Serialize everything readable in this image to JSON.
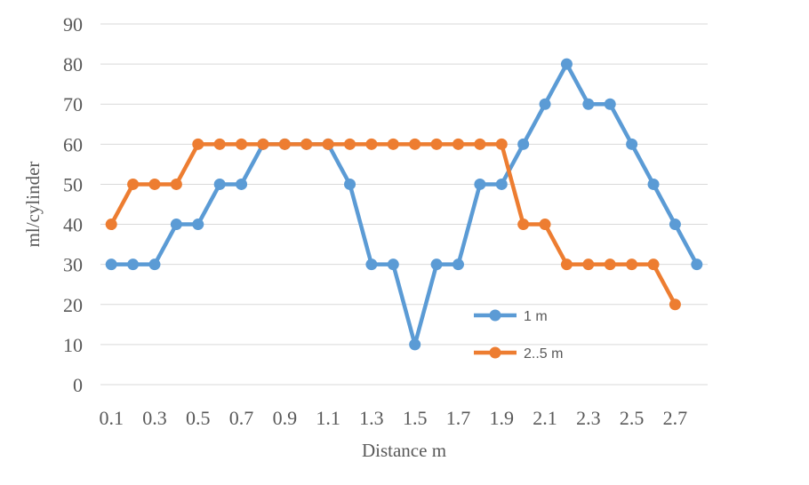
{
  "chart_data": {
    "type": "line",
    "title": "",
    "xlabel": "Distance m",
    "ylabel": "ml/cylinder",
    "ylim": [
      0,
      90
    ],
    "yticks": [
      0,
      10,
      20,
      30,
      40,
      50,
      60,
      70,
      80,
      90
    ],
    "x": [
      "0.1",
      "0.2",
      "0.3",
      "0.4",
      "0.5",
      "0.6",
      "0.7",
      "0.8",
      "0.9",
      "1",
      "1.1",
      "1.2",
      "1.3",
      "1.4",
      "1.5",
      "1.6",
      "1.7",
      "1.8",
      "1.9",
      "2",
      "2.1",
      "2.2",
      "2.3",
      "2.4",
      "2.5",
      "2.6",
      "2.7",
      "2.8"
    ],
    "xtick_labels": [
      "0.1",
      "",
      "0.3",
      "",
      "0.5",
      "",
      "0.7",
      "",
      "0.9",
      "",
      "1.1",
      "",
      "1.3",
      "",
      "1.5",
      "",
      "1.7",
      "",
      "1.9",
      "",
      "2.1",
      "",
      "2.3",
      "",
      "2.5",
      "",
      "2.7",
      ""
    ],
    "grid": true,
    "legend_position": "bottom-right",
    "series": [
      {
        "name": "1 m",
        "color": "#5b9bd5",
        "values": [
          30,
          30,
          30,
          40,
          40,
          50,
          50,
          60,
          60,
          60,
          60,
          50,
          30,
          30,
          10,
          30,
          30,
          50,
          50,
          60,
          70,
          80,
          70,
          70,
          60,
          50,
          40,
          30
        ]
      },
      {
        "name": "2..5 m",
        "color": "#ed7d31",
        "values": [
          40,
          50,
          50,
          50,
          60,
          60,
          60,
          60,
          60,
          60,
          60,
          60,
          60,
          60,
          60,
          60,
          60,
          60,
          60,
          40,
          40,
          30,
          30,
          30,
          30,
          30,
          20,
          null
        ]
      }
    ]
  }
}
